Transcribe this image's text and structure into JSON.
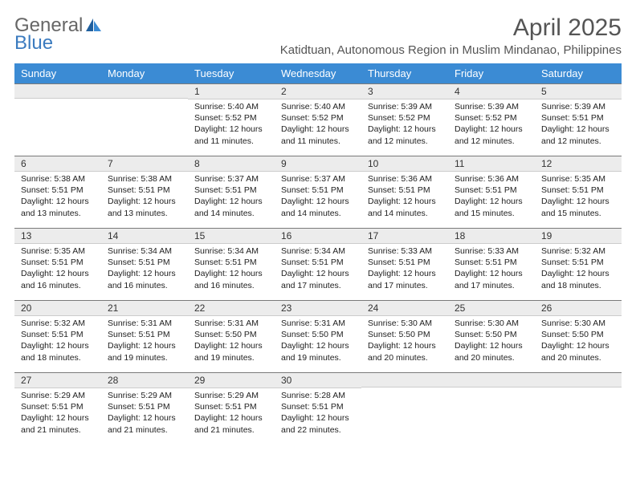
{
  "logo": {
    "text1": "General",
    "text2": "Blue"
  },
  "title": "April 2025",
  "subtitle": "Katidtuan, Autonomous Region in Muslim Mindanao, Philippines",
  "colors": {
    "header_bg": "#3b8bd4",
    "header_fg": "#ffffff",
    "daynum_bg": "#ececec",
    "rule": "#7a7a7a",
    "text": "#222222",
    "logo_gray": "#666666",
    "logo_blue": "#3b7bbf"
  },
  "daysOfWeek": [
    "Sunday",
    "Monday",
    "Tuesday",
    "Wednesday",
    "Thursday",
    "Friday",
    "Saturday"
  ],
  "weeks": [
    [
      null,
      null,
      {
        "n": "1",
        "sr": "Sunrise: 5:40 AM",
        "ss": "Sunset: 5:52 PM",
        "dl": "Daylight: 12 hours and 11 minutes."
      },
      {
        "n": "2",
        "sr": "Sunrise: 5:40 AM",
        "ss": "Sunset: 5:52 PM",
        "dl": "Daylight: 12 hours and 11 minutes."
      },
      {
        "n": "3",
        "sr": "Sunrise: 5:39 AM",
        "ss": "Sunset: 5:52 PM",
        "dl": "Daylight: 12 hours and 12 minutes."
      },
      {
        "n": "4",
        "sr": "Sunrise: 5:39 AM",
        "ss": "Sunset: 5:52 PM",
        "dl": "Daylight: 12 hours and 12 minutes."
      },
      {
        "n": "5",
        "sr": "Sunrise: 5:39 AM",
        "ss": "Sunset: 5:51 PM",
        "dl": "Daylight: 12 hours and 12 minutes."
      }
    ],
    [
      {
        "n": "6",
        "sr": "Sunrise: 5:38 AM",
        "ss": "Sunset: 5:51 PM",
        "dl": "Daylight: 12 hours and 13 minutes."
      },
      {
        "n": "7",
        "sr": "Sunrise: 5:38 AM",
        "ss": "Sunset: 5:51 PM",
        "dl": "Daylight: 12 hours and 13 minutes."
      },
      {
        "n": "8",
        "sr": "Sunrise: 5:37 AM",
        "ss": "Sunset: 5:51 PM",
        "dl": "Daylight: 12 hours and 14 minutes."
      },
      {
        "n": "9",
        "sr": "Sunrise: 5:37 AM",
        "ss": "Sunset: 5:51 PM",
        "dl": "Daylight: 12 hours and 14 minutes."
      },
      {
        "n": "10",
        "sr": "Sunrise: 5:36 AM",
        "ss": "Sunset: 5:51 PM",
        "dl": "Daylight: 12 hours and 14 minutes."
      },
      {
        "n": "11",
        "sr": "Sunrise: 5:36 AM",
        "ss": "Sunset: 5:51 PM",
        "dl": "Daylight: 12 hours and 15 minutes."
      },
      {
        "n": "12",
        "sr": "Sunrise: 5:35 AM",
        "ss": "Sunset: 5:51 PM",
        "dl": "Daylight: 12 hours and 15 minutes."
      }
    ],
    [
      {
        "n": "13",
        "sr": "Sunrise: 5:35 AM",
        "ss": "Sunset: 5:51 PM",
        "dl": "Daylight: 12 hours and 16 minutes."
      },
      {
        "n": "14",
        "sr": "Sunrise: 5:34 AM",
        "ss": "Sunset: 5:51 PM",
        "dl": "Daylight: 12 hours and 16 minutes."
      },
      {
        "n": "15",
        "sr": "Sunrise: 5:34 AM",
        "ss": "Sunset: 5:51 PM",
        "dl": "Daylight: 12 hours and 16 minutes."
      },
      {
        "n": "16",
        "sr": "Sunrise: 5:34 AM",
        "ss": "Sunset: 5:51 PM",
        "dl": "Daylight: 12 hours and 17 minutes."
      },
      {
        "n": "17",
        "sr": "Sunrise: 5:33 AM",
        "ss": "Sunset: 5:51 PM",
        "dl": "Daylight: 12 hours and 17 minutes."
      },
      {
        "n": "18",
        "sr": "Sunrise: 5:33 AM",
        "ss": "Sunset: 5:51 PM",
        "dl": "Daylight: 12 hours and 17 minutes."
      },
      {
        "n": "19",
        "sr": "Sunrise: 5:32 AM",
        "ss": "Sunset: 5:51 PM",
        "dl": "Daylight: 12 hours and 18 minutes."
      }
    ],
    [
      {
        "n": "20",
        "sr": "Sunrise: 5:32 AM",
        "ss": "Sunset: 5:51 PM",
        "dl": "Daylight: 12 hours and 18 minutes."
      },
      {
        "n": "21",
        "sr": "Sunrise: 5:31 AM",
        "ss": "Sunset: 5:51 PM",
        "dl": "Daylight: 12 hours and 19 minutes."
      },
      {
        "n": "22",
        "sr": "Sunrise: 5:31 AM",
        "ss": "Sunset: 5:50 PM",
        "dl": "Daylight: 12 hours and 19 minutes."
      },
      {
        "n": "23",
        "sr": "Sunrise: 5:31 AM",
        "ss": "Sunset: 5:50 PM",
        "dl": "Daylight: 12 hours and 19 minutes."
      },
      {
        "n": "24",
        "sr": "Sunrise: 5:30 AM",
        "ss": "Sunset: 5:50 PM",
        "dl": "Daylight: 12 hours and 20 minutes."
      },
      {
        "n": "25",
        "sr": "Sunrise: 5:30 AM",
        "ss": "Sunset: 5:50 PM",
        "dl": "Daylight: 12 hours and 20 minutes."
      },
      {
        "n": "26",
        "sr": "Sunrise: 5:30 AM",
        "ss": "Sunset: 5:50 PM",
        "dl": "Daylight: 12 hours and 20 minutes."
      }
    ],
    [
      {
        "n": "27",
        "sr": "Sunrise: 5:29 AM",
        "ss": "Sunset: 5:51 PM",
        "dl": "Daylight: 12 hours and 21 minutes."
      },
      {
        "n": "28",
        "sr": "Sunrise: 5:29 AM",
        "ss": "Sunset: 5:51 PM",
        "dl": "Daylight: 12 hours and 21 minutes."
      },
      {
        "n": "29",
        "sr": "Sunrise: 5:29 AM",
        "ss": "Sunset: 5:51 PM",
        "dl": "Daylight: 12 hours and 21 minutes."
      },
      {
        "n": "30",
        "sr": "Sunrise: 5:28 AM",
        "ss": "Sunset: 5:51 PM",
        "dl": "Daylight: 12 hours and 22 minutes."
      },
      null,
      null,
      null
    ]
  ]
}
